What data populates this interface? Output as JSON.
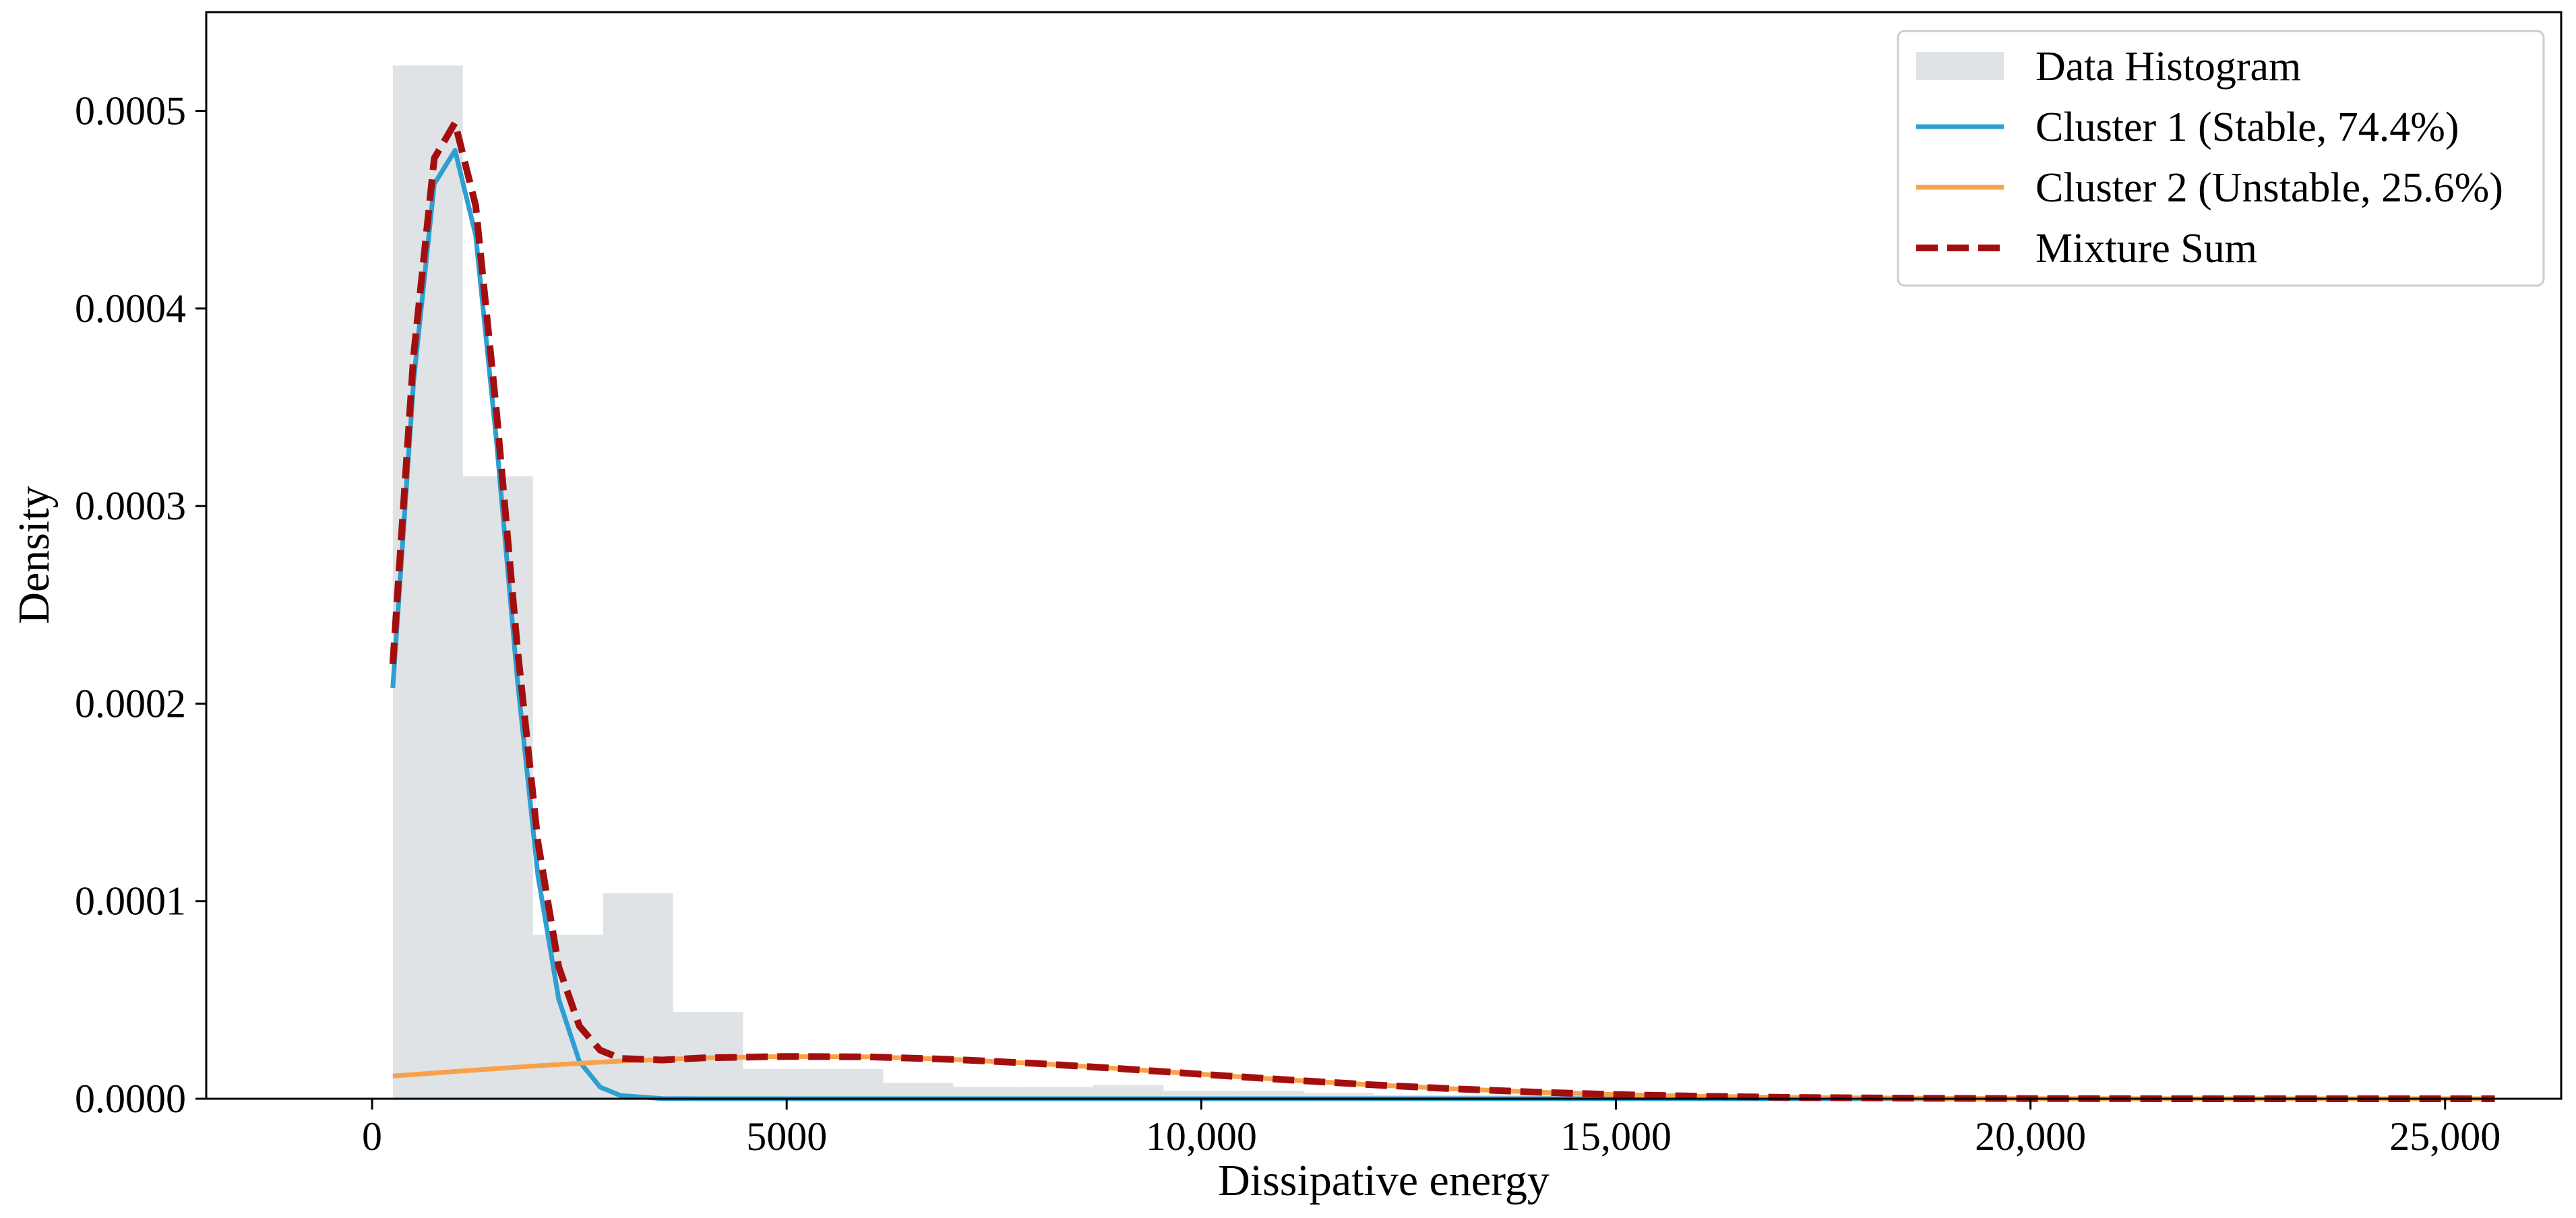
{
  "chart_data": {
    "type": "histogram",
    "xlabel": "Dissipative energy",
    "ylabel": "Density",
    "xlim": [
      -2000,
      26400
    ],
    "ylim": [
      0,
      0.00055
    ],
    "x_ticks": [
      {
        "value": 0,
        "label": "0"
      },
      {
        "value": 5000,
        "label": "5000"
      },
      {
        "value": 10000,
        "label": "10,000"
      },
      {
        "value": 15000,
        "label": "15,000"
      },
      {
        "value": 20000,
        "label": "20,000"
      },
      {
        "value": 25000,
        "label": "25,000"
      }
    ],
    "y_ticks": [
      {
        "value": 0,
        "label": "0.0000"
      },
      {
        "value": 0.0001,
        "label": "0.0001"
      },
      {
        "value": 0.0002,
        "label": "0.0002"
      },
      {
        "value": 0.0003,
        "label": "0.0003"
      },
      {
        "value": 0.0004,
        "label": "0.0004"
      },
      {
        "value": 0.0005,
        "label": "0.0005"
      }
    ],
    "grid": false,
    "legend_position": "top-right",
    "histogram": {
      "name": "Data Histogram",
      "color": "#dfe3e6",
      "bin_edges": [
        250,
        1095,
        1940,
        2785,
        3630,
        4475,
        5320,
        6165,
        7010,
        7855,
        8700,
        9545,
        10390,
        11235,
        12080,
        12925,
        13770,
        14615,
        15460,
        16305,
        17150,
        17995,
        18840,
        19685,
        20530,
        21375,
        22220,
        23065,
        23910,
        24755,
        25600
      ],
      "density": [
        0.000523,
        0.000315,
        8.3e-05,
        0.000104,
        4.4e-05,
        1.5e-05,
        1.5e-05,
        8e-06,
        6e-06,
        6e-06,
        7e-06,
        4e-06,
        4e-06,
        3e-06,
        2e-06,
        2e-06,
        2e-06,
        1e-06,
        1e-06,
        1e-06,
        1e-06,
        1e-06,
        1e-06,
        1e-06,
        1e-06,
        1e-06,
        0.0,
        0.0,
        0.0,
        0.0
      ]
    },
    "series": [
      {
        "name": "Cluster 1 (Stable, 74.4%)",
        "color": "#2e9fd0",
        "style": "solid",
        "x": [
          250,
          500,
          750,
          1000,
          1250,
          1500,
          1750,
          2000,
          2250,
          2500,
          2750,
          3000,
          3500,
          4000,
          5000,
          6000,
          8000,
          10000,
          15000,
          20000,
          25600
        ],
        "y": [
          0.000208,
          0.000363,
          0.000463,
          0.00048,
          0.000437,
          0.000333,
          0.000213,
          0.000113,
          5.05e-05,
          1.89e-05,
          5.9e-06,
          1.6e-06,
          1e-07,
          0.0,
          0.0,
          0.0,
          0.0,
          0.0,
          0.0,
          0.0,
          0.0
        ]
      },
      {
        "name": "Cluster 2 (Unstable, 25.6%)",
        "color": "#f7a24b",
        "style": "solid",
        "x": [
          250,
          1000,
          2000,
          3000,
          4000,
          5000,
          6000,
          7000,
          8000,
          9000,
          10000,
          11000,
          12000,
          13000,
          14000,
          15000,
          16000,
          17000,
          18000,
          19000,
          20000,
          22000,
          25600
        ],
        "y": [
          1.15e-05,
          1.38e-05,
          1.67e-05,
          1.91e-05,
          2.07e-05,
          2.14e-05,
          2.12e-05,
          1.99e-05,
          1.79e-05,
          1.53e-05,
          1.24e-05,
          9.7e-06,
          7.2e-06,
          5.1e-06,
          3.4e-06,
          2.1e-06,
          1.3e-06,
          7e-07,
          4e-07,
          2e-07,
          1e-07,
          0.0,
          0.0
        ]
      },
      {
        "name": "Mixture Sum",
        "color": "#a30f0f",
        "style": "dashed",
        "x": [
          250,
          500,
          750,
          1000,
          1250,
          1500,
          1750,
          2000,
          2250,
          2500,
          2750,
          3000,
          3500,
          4000,
          5000,
          6000,
          7000,
          8000,
          9000,
          10000,
          11000,
          12000,
          13000,
          14000,
          15000,
          16000,
          17000,
          18000,
          19000,
          20000,
          22000,
          25600
        ],
        "y": [
          0.00022,
          0.000376,
          0.000476,
          0.000494,
          0.000452,
          0.000348,
          0.000229,
          0.00013,
          6.69e-05,
          3.68e-05,
          2.46e-05,
          2.04e-05,
          1.96e-05,
          2.07e-05,
          2.14e-05,
          2.12e-05,
          1.99e-05,
          1.79e-05,
          1.53e-05,
          1.24e-05,
          9.7e-06,
          7.2e-06,
          5.1e-06,
          3.4e-06,
          2.1e-06,
          1.3e-06,
          7e-07,
          4e-07,
          2e-07,
          1e-07,
          0.0,
          0.0
        ]
      }
    ]
  }
}
